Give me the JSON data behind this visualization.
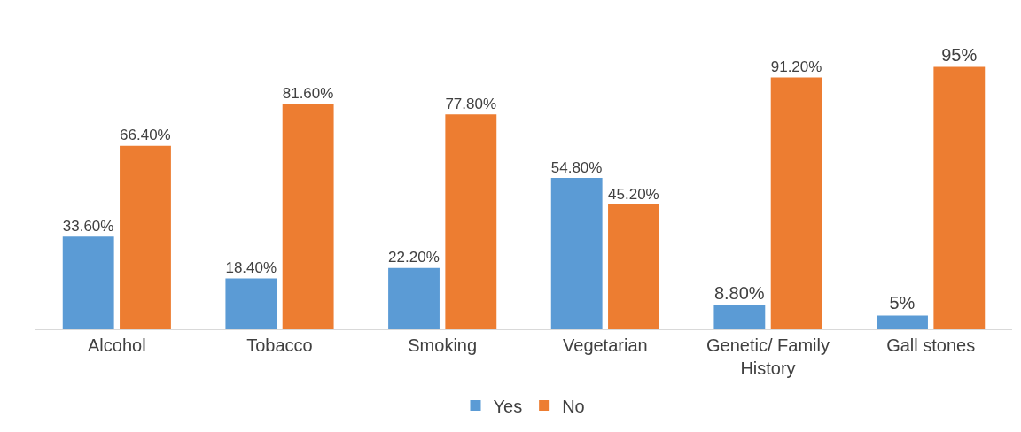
{
  "chart_data": {
    "type": "bar",
    "categories": [
      "Alcohol",
      "Tobacco",
      "Smoking",
      "Vegetarian",
      "Genetic/ Family History",
      "Gall stones"
    ],
    "series": [
      {
        "name": "Yes",
        "color": "#5b9bd5",
        "values": [
          33.6,
          18.4,
          22.2,
          54.8,
          8.8,
          5
        ],
        "value_labels": [
          "33.60%",
          "18.40%",
          "22.20%",
          "54.80%",
          "8.80%",
          "5%"
        ]
      },
      {
        "name": "No",
        "color": "#ed7d31",
        "values": [
          66.4,
          81.6,
          77.8,
          45.2,
          91.2,
          95
        ],
        "value_labels": [
          "66.40%",
          "81.60%",
          "77.80%",
          "45.20%",
          "91.20%",
          "95%"
        ]
      }
    ],
    "legend": "bottom",
    "grid": false
  }
}
